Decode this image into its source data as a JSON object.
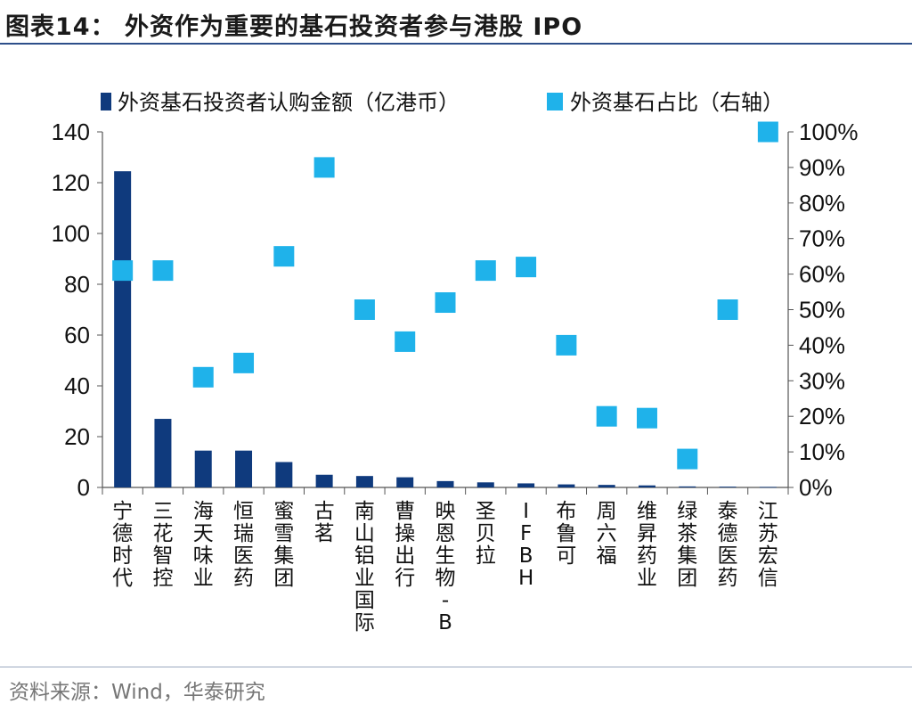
{
  "header": {
    "title": "图表14： 外资作为重要的基石投资者参与港股 IPO"
  },
  "footer": {
    "source": "资料来源：Wind，华泰研究"
  },
  "colors": {
    "bar": "#0f3a7d",
    "marker": "#1fb2ea",
    "rule": "#2d4f8a"
  },
  "chart_data": {
    "type": "bar",
    "title": "",
    "categories": [
      "宁德时代",
      "三花智控",
      "海天味业",
      "恒瑞医药",
      "蜜雪集团",
      "古茗",
      "南山铝业国际",
      "曹操出行",
      "映恩生物-B",
      "圣贝拉",
      "IFBH",
      "布鲁可",
      "周六福",
      "维昇药业",
      "绿茶集团",
      "泰德医药",
      "江苏宏信"
    ],
    "series": [
      {
        "name": "外资基石投资者认购金额（亿港币）",
        "type": "bar",
        "axis": "left",
        "values": [
          124.5,
          27,
          14.5,
          14.5,
          10,
          5,
          4.5,
          4,
          2.5,
          2,
          1.6,
          1.2,
          1,
          0.8,
          0.4,
          0.3,
          0.2
        ]
      },
      {
        "name": "外资基石占比（右轴）",
        "type": "scatter",
        "axis": "right",
        "values": [
          61,
          61,
          31,
          35,
          65,
          90,
          50,
          41,
          52,
          61,
          62,
          40,
          20,
          19.5,
          8,
          50,
          100
        ]
      }
    ],
    "y_left": {
      "min": 0,
      "max": 140,
      "ticks": [
        "0",
        "20",
        "40",
        "60",
        "80",
        "100",
        "120",
        "140"
      ]
    },
    "y_right": {
      "min": 0,
      "max": 100,
      "ticks": [
        "0%",
        "10%",
        "20%",
        "30%",
        "40%",
        "50%",
        "60%",
        "70%",
        "80%",
        "90%",
        "100%"
      ]
    },
    "legend_position": "top",
    "grid": false
  }
}
